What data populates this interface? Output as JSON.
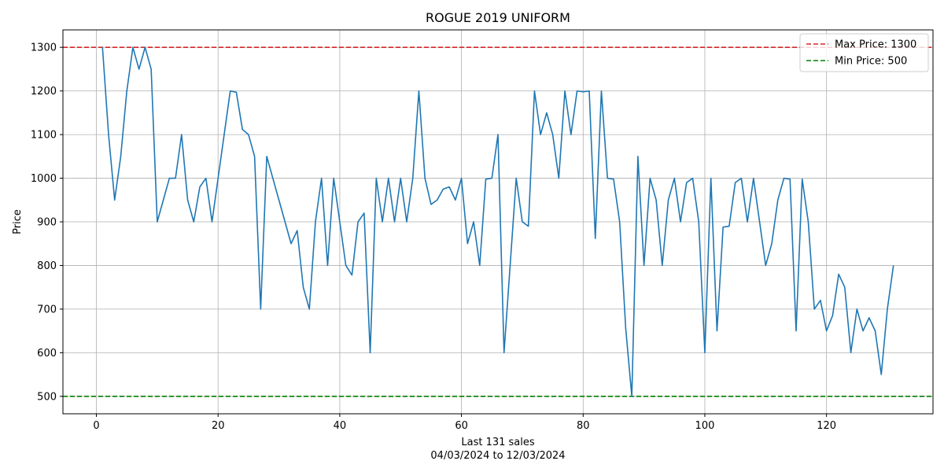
{
  "chart_data": {
    "type": "line",
    "title": "ROGUE 2019 UNIFORM",
    "xlabel_line1": "Last 131 sales",
    "xlabel_line2": "04/03/2024 to 12/03/2024",
    "ylabel": "Price",
    "xlim": [
      -5.5,
      137.5
    ],
    "ylim": [
      460,
      1340
    ],
    "x_ticks": [
      0,
      20,
      40,
      60,
      80,
      100,
      120
    ],
    "y_ticks": [
      500,
      600,
      700,
      800,
      900,
      1000,
      1100,
      1200,
      1300
    ],
    "grid": true,
    "legend_position": "top-right",
    "reference_lines": [
      {
        "name": "Max Price: 1300",
        "value": 1300,
        "color": "#d62728"
      },
      {
        "name": "Min Price: 500",
        "value": 500,
        "color": "#008000"
      }
    ],
    "series": [
      {
        "color": "#1f77b4",
        "x_start": 1,
        "values": [
          1300,
          1100,
          950,
          1050,
          1200,
          1300,
          1250,
          1300,
          1250,
          900,
          950,
          1000,
          1000,
          1100,
          950,
          900,
          980,
          1000,
          900,
          1000,
          1100,
          1200,
          1197,
          1112,
          1100,
          1050,
          700,
          1050,
          1000,
          950,
          900,
          850,
          880,
          750,
          700,
          900,
          1000,
          800,
          1000,
          900,
          800,
          778,
          900,
          920,
          600,
          1000,
          900,
          1000,
          900,
          1000,
          900,
          1000,
          1200,
          1000,
          940,
          950,
          975,
          980,
          950,
          1000,
          850,
          900,
          800,
          998,
          1000,
          1100,
          600,
          800,
          1000,
          900,
          890,
          1200,
          1100,
          1150,
          1100,
          1000,
          1200,
          1100,
          1200,
          1198,
          1200,
          862,
          1200,
          1000,
          998,
          900,
          655,
          500,
          1050,
          800,
          1000,
          950,
          800,
          950,
          1000,
          900,
          990,
          1000,
          900,
          600,
          1000,
          650,
          888,
          890,
          990,
          1000,
          900,
          1000,
          900,
          800,
          850,
          950,
          1000,
          998,
          650,
          998,
          900,
          700,
          720,
          650,
          685,
          780,
          750,
          600,
          700,
          650,
          680,
          650,
          550,
          700,
          800
        ]
      }
    ]
  }
}
